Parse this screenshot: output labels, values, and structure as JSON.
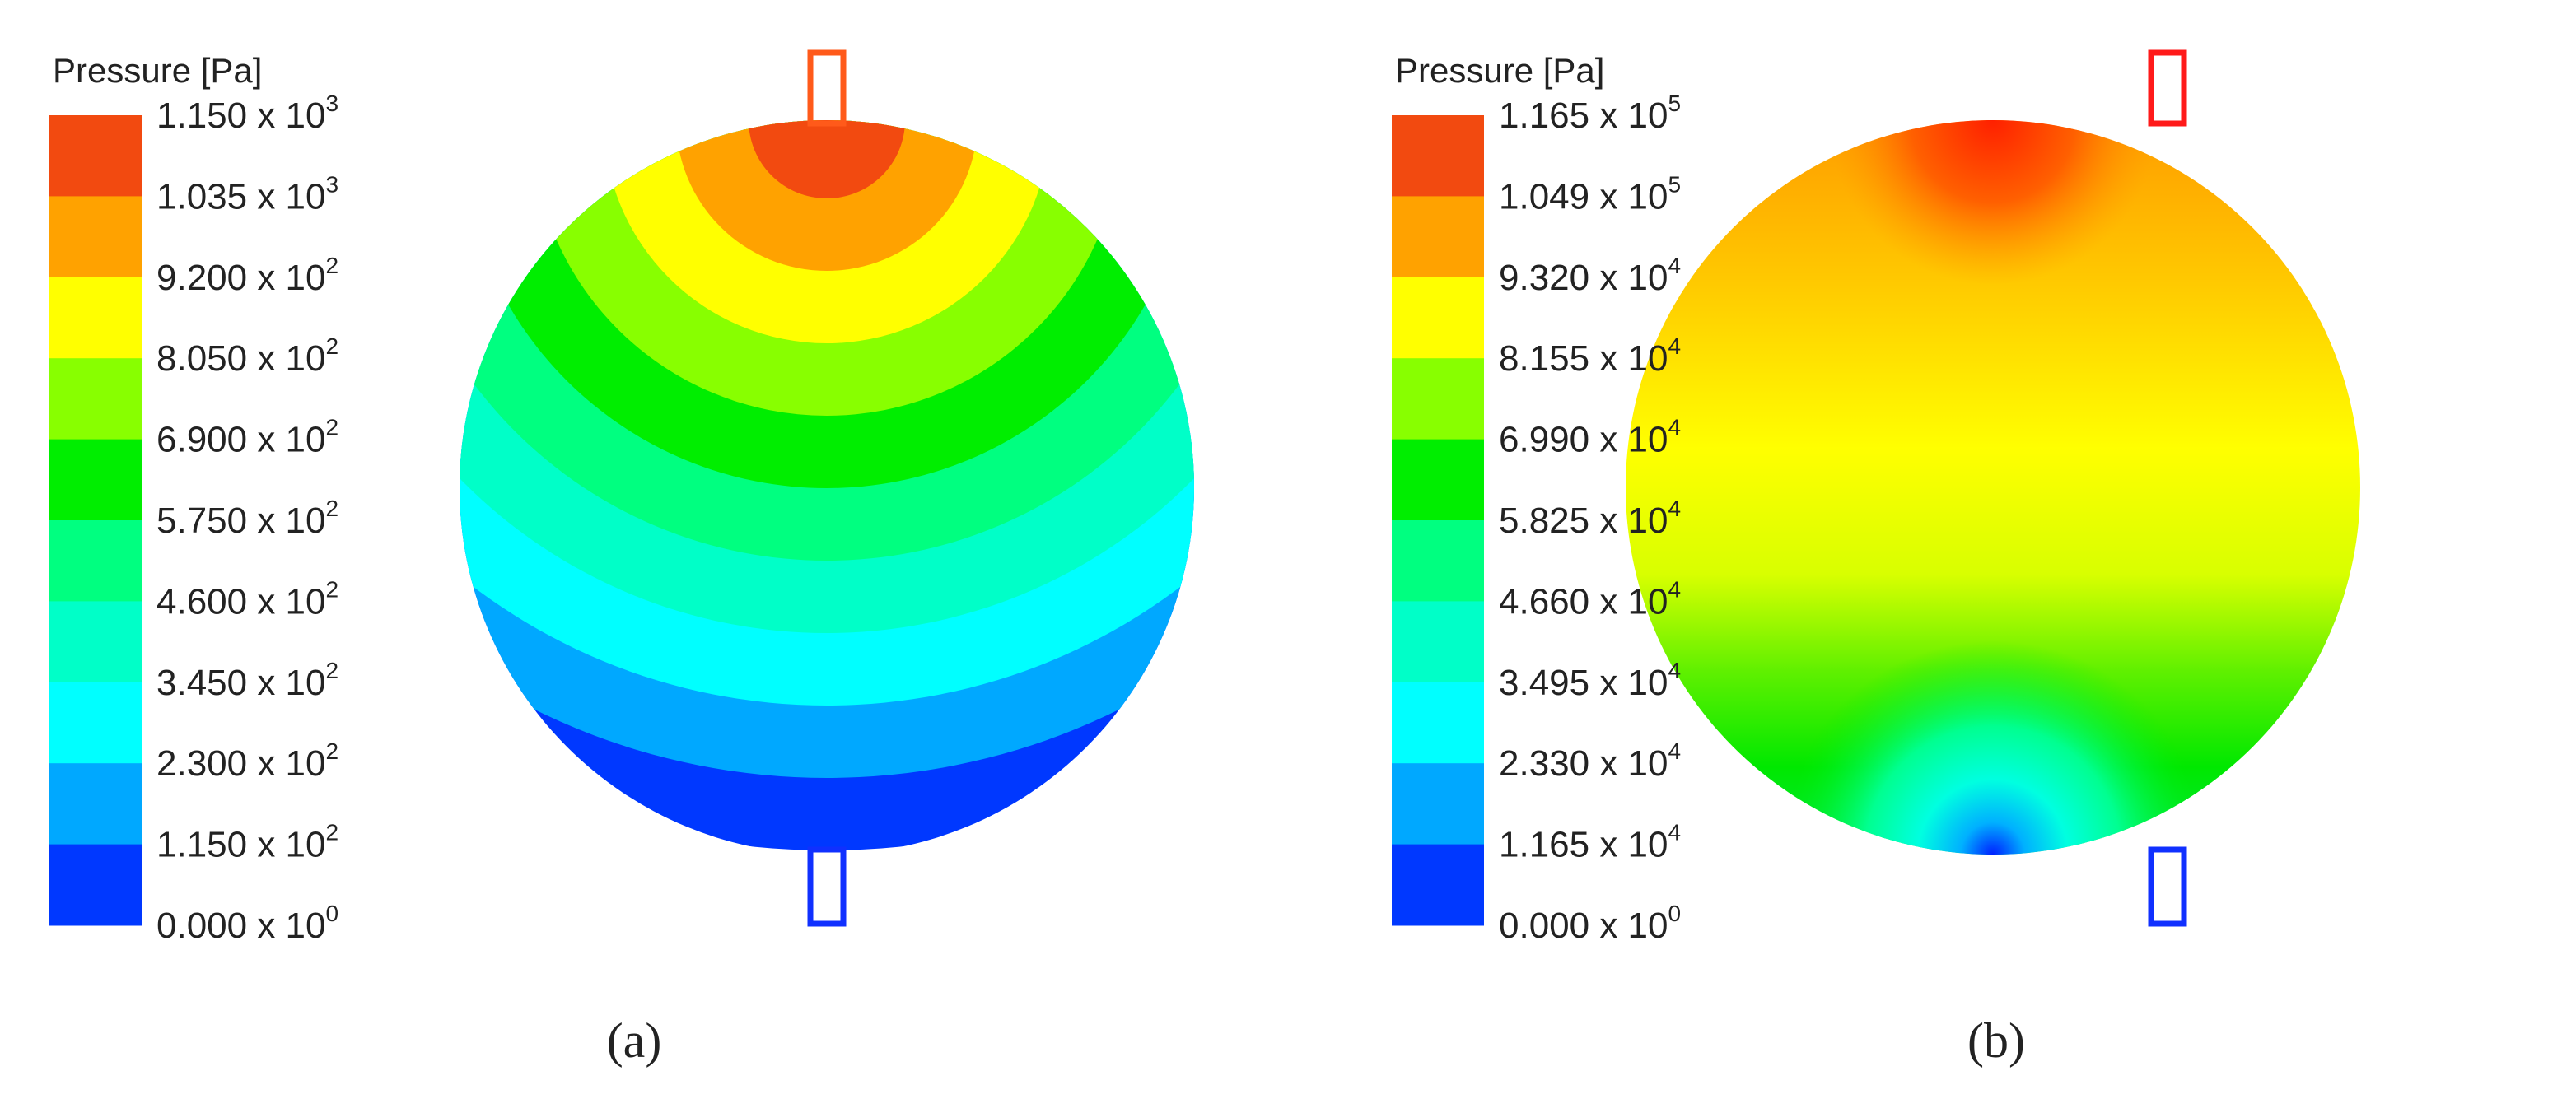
{
  "panels": [
    {
      "legend_title": "Pressure [Pa]",
      "labels": [
        {
          "text": "1.150 x 10",
          "sup": "3"
        },
        {
          "text": "1.035 x 10",
          "sup": "3"
        },
        {
          "text": "9.200 x 10",
          "sup": "2"
        },
        {
          "text": "8.050 x 10",
          "sup": "2"
        },
        {
          "text": "6.900 x 10",
          "sup": "2"
        },
        {
          "text": "5.750 x 10",
          "sup": "2"
        },
        {
          "text": "4.600 x 10",
          "sup": "2"
        },
        {
          "text": "3.450 x 10",
          "sup": "2"
        },
        {
          "text": "2.300 x 10",
          "sup": "2"
        },
        {
          "text": "1.150 x 10",
          "sup": "2"
        },
        {
          "text": "0.000 x 10",
          "sup": "0"
        }
      ],
      "colors": [
        "#f24a10",
        "#ffa200",
        "#ffff00",
        "#88ff00",
        "#00ee00",
        "#00ff80",
        "#00ffc8",
        "#00ffff",
        "#00a8ff",
        "#0038ff"
      ],
      "caption": "(a)"
    },
    {
      "legend_title": "Pressure [Pa]",
      "labels": [
        {
          "text": "1.165 x 10",
          "sup": "5"
        },
        {
          "text": "1.049 x 10",
          "sup": "5"
        },
        {
          "text": "9.320 x 10",
          "sup": "4"
        },
        {
          "text": "8.155 x 10",
          "sup": "4"
        },
        {
          "text": "6.990 x 10",
          "sup": "4"
        },
        {
          "text": "5.825 x 10",
          "sup": "4"
        },
        {
          "text": "4.660 x 10",
          "sup": "4"
        },
        {
          "text": "3.495 x 10",
          "sup": "4"
        },
        {
          "text": "2.330 x 10",
          "sup": "4"
        },
        {
          "text": "1.165 x 10",
          "sup": "4"
        },
        {
          "text": "0.000 x 10",
          "sup": "0"
        }
      ],
      "colors": [
        "#f24a10",
        "#ffa200",
        "#ffff00",
        "#88ff00",
        "#00ee00",
        "#00ff80",
        "#00ffc8",
        "#00ffff",
        "#00a8ff",
        "#0038ff"
      ],
      "caption": "(b)"
    }
  ]
}
